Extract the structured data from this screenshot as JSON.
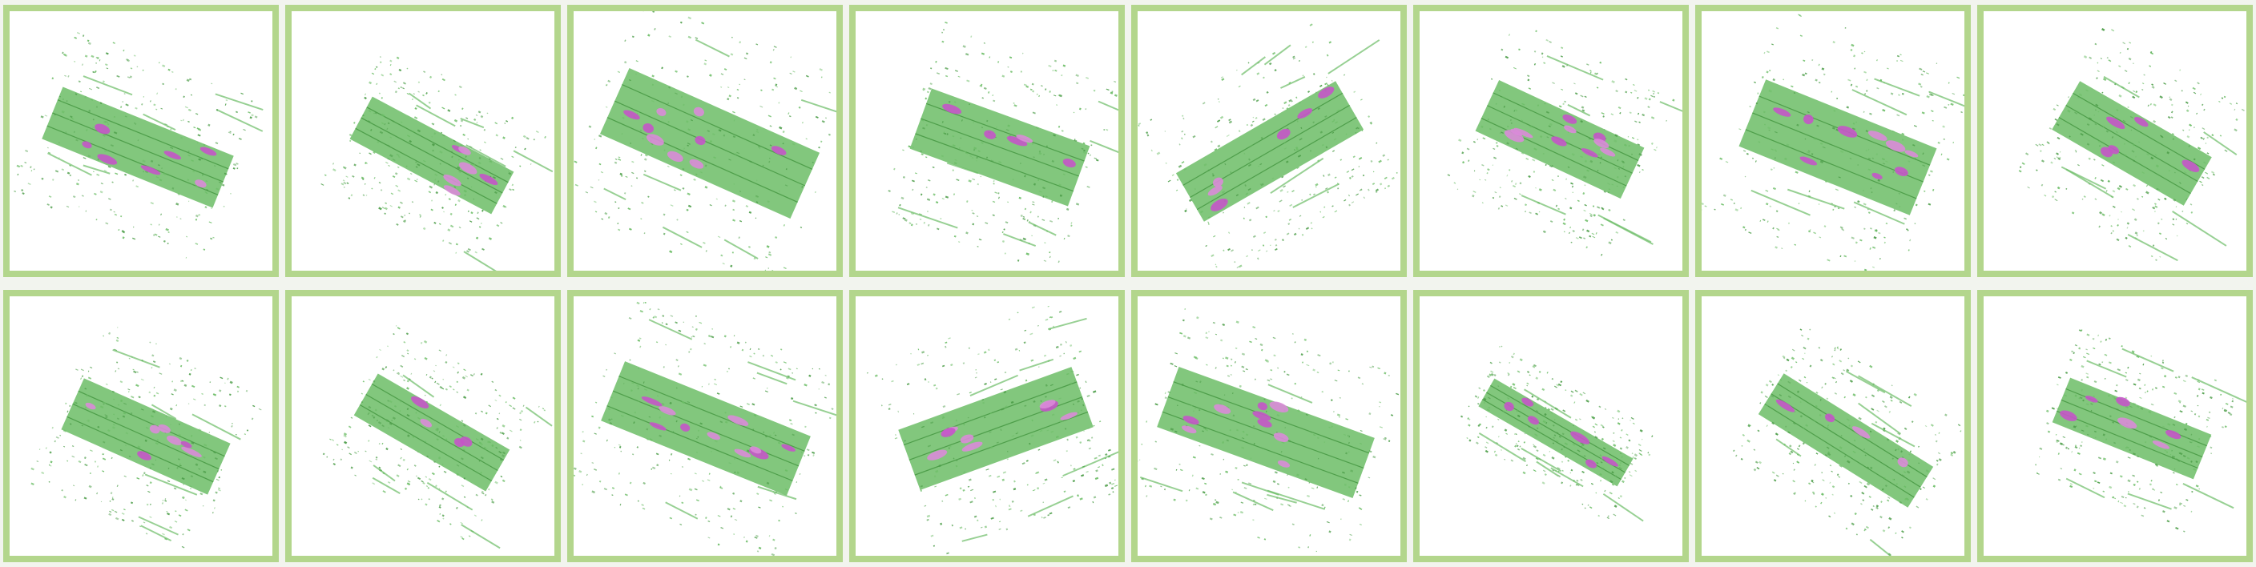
{
  "grid": {
    "rows": 2,
    "cols": 8
  },
  "colors": {
    "frame": "#b3d68c",
    "panel": "#ffffff",
    "page": "#f2f4ee",
    "points": "#6cbd66",
    "points_dark": "#4e9e4a",
    "objects": "#c455c8",
    "objects_light": "#d98bd8"
  },
  "panels": [
    {
      "id": 1,
      "content": "lidar-scene",
      "objects": 7
    },
    {
      "id": 2,
      "content": "lidar-scene",
      "objects": 6
    },
    {
      "id": 3,
      "content": "lidar-scene",
      "objects": 9
    },
    {
      "id": 4,
      "content": "lidar-scene",
      "objects": 5
    },
    {
      "id": 5,
      "content": "lidar-scene",
      "objects": 6
    },
    {
      "id": 6,
      "content": "lidar-scene",
      "objects": 10
    },
    {
      "id": 7,
      "content": "lidar-scene",
      "objects": 9
    },
    {
      "id": 8,
      "content": "lidar-scene",
      "objects": 5
    },
    {
      "id": 9,
      "content": "lidar-scene",
      "objects": 7
    },
    {
      "id": 10,
      "content": "lidar-scene",
      "objects": 4
    },
    {
      "id": 11,
      "content": "lidar-scene",
      "objects": 10
    },
    {
      "id": 12,
      "content": "lidar-scene",
      "objects": 8
    },
    {
      "id": 13,
      "content": "lidar-scene",
      "objects": 9
    },
    {
      "id": 14,
      "content": "lidar-scene",
      "objects": 6
    },
    {
      "id": 15,
      "content": "lidar-scene",
      "objects": 4
    },
    {
      "id": 16,
      "content": "lidar-scene",
      "objects": 6
    }
  ]
}
